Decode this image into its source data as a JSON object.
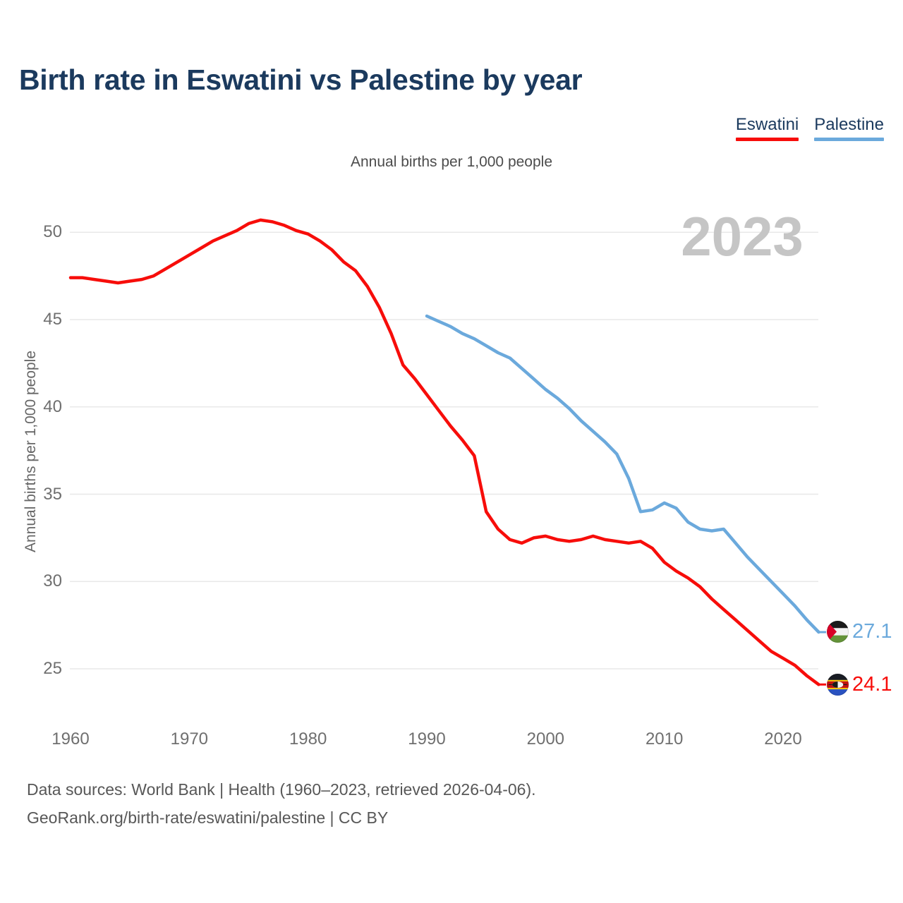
{
  "title": "Birth rate in Eswatini vs Palestine by year",
  "subtitle": "Annual births per 1,000 people",
  "watermark": "2023",
  "legend": {
    "position": "top-right",
    "eswatini_label": "Eswatini",
    "palestine_label": "Palestine"
  },
  "y_axis_title": "Annual births per 1,000 people",
  "end_labels": {
    "palestine": "27.1",
    "eswatini": "24.1"
  },
  "icons": {
    "palestine_flag": "palestine-flag-icon",
    "eswatini_flag": "eswatini-flag-icon"
  },
  "colors": {
    "eswatini_line": "#f70d0a",
    "palestine_line": "#6ba9dc",
    "title_navy": "#1b3a5e",
    "grid": "#e8e8e8",
    "axis_text": "#6f6f6f",
    "watermark": "#c5c5c5"
  },
  "footer": {
    "line1": "Data sources: World Bank | Health (1960–2023, retrieved 2026-04-06).",
    "line2": "GeoRank.org/birth-rate/eswatini/palestine | CC BY"
  },
  "chart_data": {
    "type": "line",
    "title": "Birth rate in Eswatini vs Palestine by year",
    "subtitle": "Annual births per 1,000 people",
    "ylabel": "Annual births per 1,000 people",
    "xlabel": "",
    "x_ticks": [
      1960,
      1970,
      1980,
      1990,
      2000,
      2010,
      2020
    ],
    "y_ticks": [
      25,
      30,
      35,
      40,
      45,
      50
    ],
    "xlim": [
      1960,
      2023
    ],
    "ylim": [
      23.5,
      51.5
    ],
    "grid": "horizontal",
    "legend_position": "top-right",
    "series": [
      {
        "name": "Eswatini",
        "color": "#f70d0a",
        "start_year": 1960,
        "end_year": 2023,
        "end_label": "24.1",
        "values": [
          47.4,
          47.4,
          47.3,
          47.2,
          47.1,
          47.2,
          47.3,
          47.5,
          47.9,
          48.3,
          48.7,
          49.1,
          49.5,
          49.8,
          50.1,
          50.5,
          50.7,
          50.6,
          50.4,
          50.1,
          49.9,
          49.5,
          49.0,
          48.3,
          47.8,
          46.9,
          45.7,
          44.2,
          42.4,
          41.6,
          40.7,
          39.8,
          38.9,
          38.1,
          37.2,
          34.0,
          33.0,
          32.4,
          32.2,
          32.5,
          32.6,
          32.4,
          32.3,
          32.4,
          32.6,
          32.4,
          32.3,
          32.2,
          32.3,
          31.9,
          31.1,
          30.6,
          30.2,
          29.7,
          29.0,
          28.4,
          27.8,
          27.2,
          26.6,
          26.0,
          25.6,
          25.2,
          24.6,
          24.1
        ]
      },
      {
        "name": "Palestine",
        "color": "#6ba9dc",
        "start_year": 1990,
        "end_year": 2023,
        "end_label": "27.1",
        "values": [
          45.2,
          44.9,
          44.6,
          44.2,
          43.9,
          43.5,
          43.1,
          42.8,
          42.2,
          41.6,
          41.0,
          40.5,
          39.9,
          39.2,
          38.6,
          38.0,
          37.3,
          35.9,
          34.0,
          34.1,
          34.5,
          34.2,
          33.4,
          33.0,
          32.9,
          33.0,
          32.2,
          31.4,
          30.7,
          30.0,
          29.3,
          28.6,
          27.8,
          27.1
        ]
      }
    ]
  }
}
